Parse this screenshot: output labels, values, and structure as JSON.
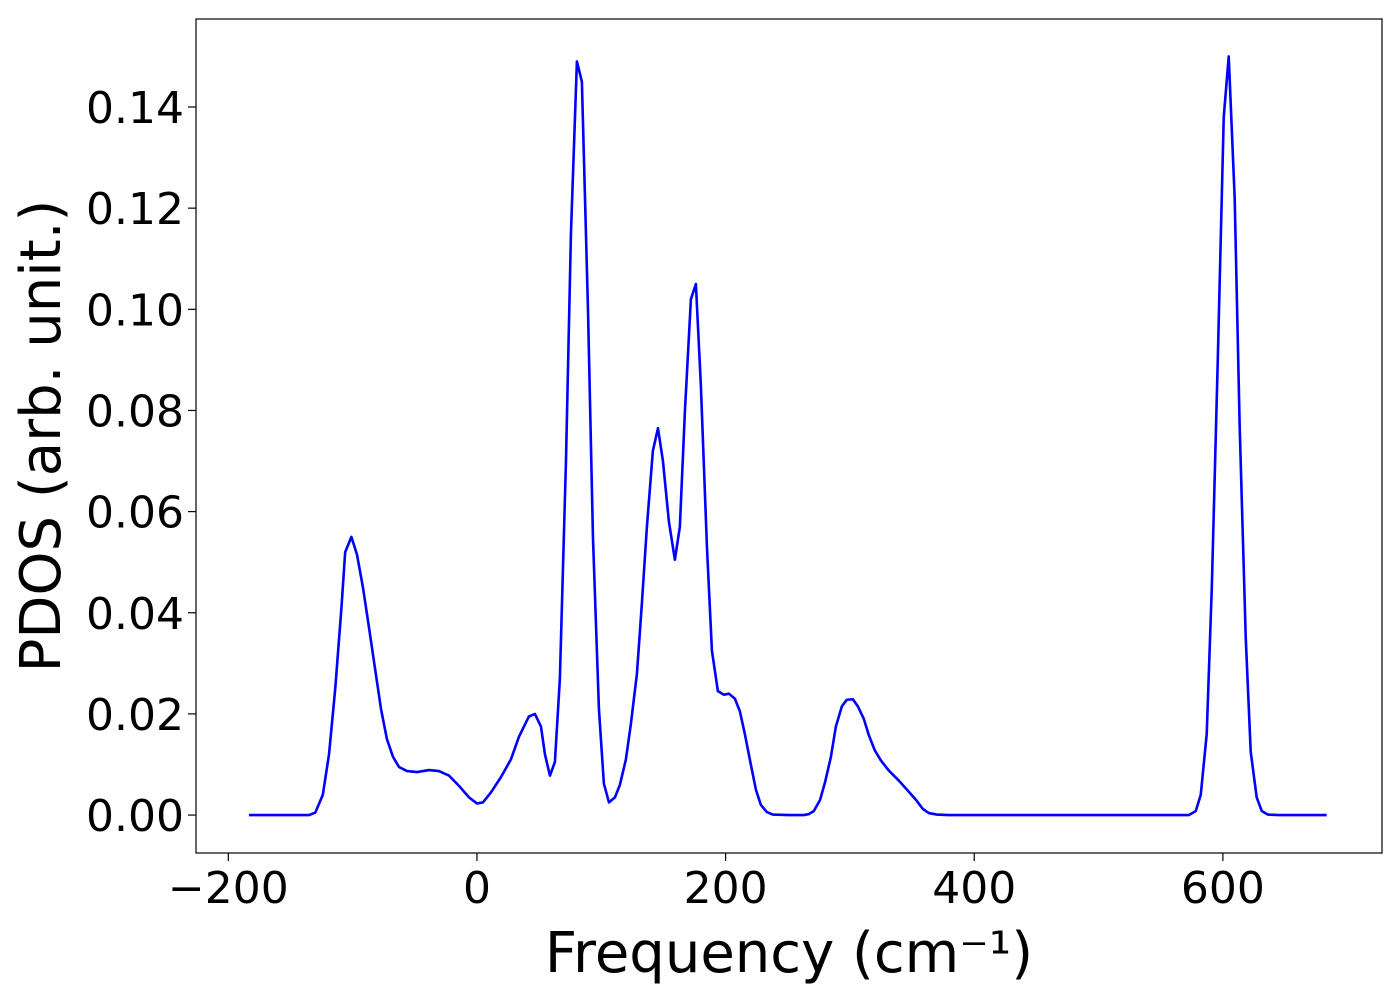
{
  "chart_data": {
    "type": "line",
    "x_label": "Frequency (cm⁻¹)",
    "y_label": "PDOS (arb. unit.)",
    "xlim": [
      -226,
      728
    ],
    "ylim": [
      -0.0075,
      0.1574
    ],
    "xticks": [
      {
        "value": -200,
        "label": "−200"
      },
      0,
      200,
      400,
      600
    ],
    "yticks": [
      {
        "value": 0,
        "label": "0.00"
      },
      0.02,
      0.04,
      0.06,
      0.08,
      {
        "value": 0.1,
        "label": "0.10"
      },
      0.12,
      0.14
    ],
    "grid": false,
    "series": [
      {
        "color": "#0000ff",
        "x": [
          -183.4,
          -135,
          -130,
          -124,
          -119,
          -114,
          -109,
          -106,
          -101,
          -96.5,
          -91.7,
          -86.8,
          -82,
          -77.2,
          -72.4,
          -67.5,
          -62.7,
          -56.3,
          -48.2,
          -38.6,
          -30.6,
          -22.5,
          -14.5,
          -6.4,
          0,
          4.8,
          11.3,
          19.3,
          27.3,
          33.8,
          41.8,
          46.6,
          51.5,
          54.7,
          58.7,
          62.7,
          66.7,
          71.6,
          75.6,
          80.4,
          84.4,
          89.3,
          93.3,
          98.1,
          102.1,
          106.2,
          111,
          115,
          119.8,
          123.8,
          128.7,
          132.7,
          136.7,
          141.5,
          145.6,
          149.6,
          154.4,
          159.2,
          163.2,
          167.3,
          172.1,
          176.1,
          180.1,
          185,
          189,
          193.8,
          198.6,
          202.7,
          207.5,
          211.5,
          215.5,
          220.3,
          224.4,
          228.4,
          233.2,
          238,
          251,
          263,
          267,
          271,
          276,
          280,
          284.7,
          288.7,
          293.5,
          297.5,
          302.4,
          306.4,
          311.2,
          315.2,
          320,
          324.9,
          331.3,
          339.4,
          347.4,
          353.8,
          358.7,
          363.5,
          369.9,
          379.6,
          572.6,
          578.2,
          582.2,
          587,
          591.1,
          595.9,
          600.7,
          604.7,
          609.5,
          613.5,
          618.4,
          622.4,
          627.2,
          631.3,
          636.1,
          645,
          683.5
        ],
        "values": [
          0,
          0,
          0.0005,
          0.004,
          0.012,
          0.025,
          0.041,
          0.052,
          0.055,
          0.0515,
          0.045,
          0.037,
          0.029,
          0.021,
          0.015,
          0.0115,
          0.0095,
          0.0087,
          0.0085,
          0.0089,
          0.0087,
          0.0078,
          0.0058,
          0.0035,
          0.0023,
          0.0025,
          0.0045,
          0.0075,
          0.011,
          0.0155,
          0.0195,
          0.02,
          0.0175,
          0.012,
          0.0078,
          0.0105,
          0.027,
          0.07,
          0.115,
          0.149,
          0.145,
          0.1,
          0.055,
          0.021,
          0.0062,
          0.0025,
          0.0035,
          0.006,
          0.011,
          0.018,
          0.028,
          0.042,
          0.057,
          0.072,
          0.0765,
          0.07,
          0.058,
          0.0505,
          0.057,
          0.08,
          0.102,
          0.105,
          0.085,
          0.053,
          0.0325,
          0.0245,
          0.0238,
          0.024,
          0.023,
          0.0205,
          0.016,
          0.01,
          0.005,
          0.002,
          0.0006,
          0.0001,
          0,
          0,
          0.0002,
          0.0008,
          0.003,
          0.0065,
          0.0115,
          0.0175,
          0.0215,
          0.0228,
          0.0229,
          0.0215,
          0.019,
          0.0158,
          0.0128,
          0.0108,
          0.0088,
          0.0068,
          0.0046,
          0.0028,
          0.0012,
          0.0004,
          0.0001,
          0,
          0,
          0.0008,
          0.004,
          0.016,
          0.045,
          0.09,
          0.138,
          0.15,
          0.122,
          0.077,
          0.035,
          0.0125,
          0.0035,
          0.0008,
          0.0001,
          0,
          0
        ]
      }
    ]
  }
}
